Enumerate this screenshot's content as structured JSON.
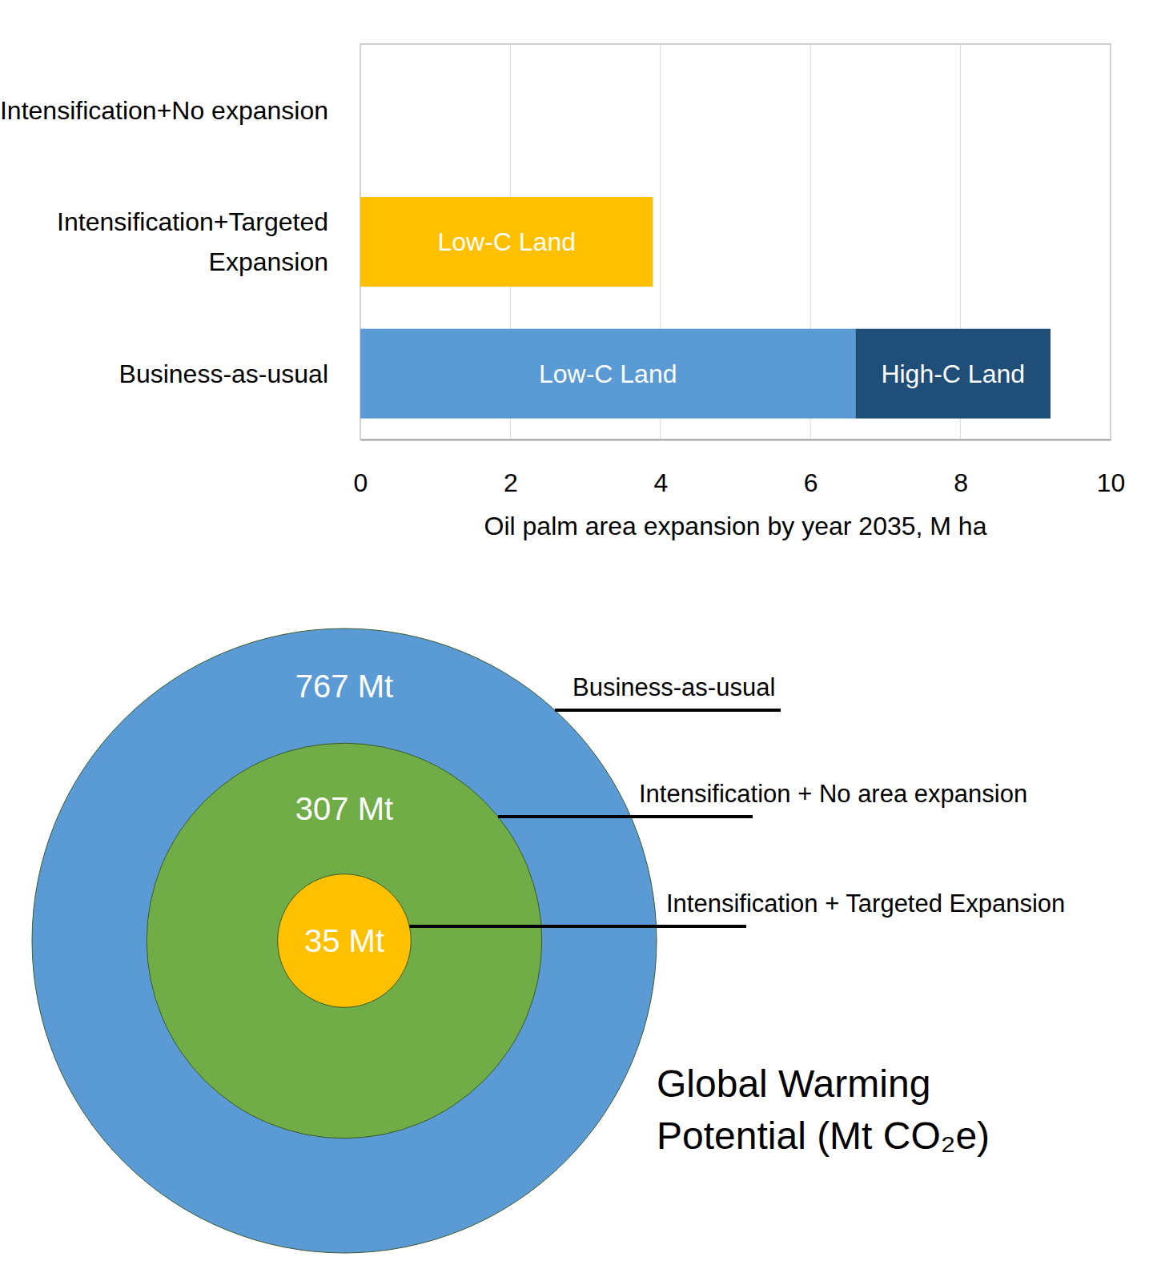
{
  "chart_data": [
    {
      "type": "bar",
      "orientation": "horizontal",
      "stacked": true,
      "grid": true,
      "x_label": "Oil palm area expansion by year 2035, M ha",
      "categories": [
        "Intensification+No expansion",
        "Intensification+Targeted Expansion",
        "Business-as-usual"
      ],
      "series": [
        {
          "name": "Low-C Land",
          "colors": [
            "#ffc000",
            "#ffc000",
            "#5b9bd5"
          ],
          "values": [
            0,
            3.9,
            6.6
          ]
        },
        {
          "name": "High-C Land",
          "color": "#1f4e79",
          "values": [
            0,
            0,
            2.6
          ]
        }
      ],
      "xlim": [
        0,
        10
      ],
      "xticks": [
        0,
        2,
        4,
        6,
        8,
        10
      ]
    },
    {
      "type": "nested_circles",
      "title": "Global Warming Potential (Mt CO₂e)",
      "categories": [
        "Business-as-usual",
        "Intensification + No area expansion",
        "Intensification + Targeted Expansion"
      ],
      "values": [
        767,
        307,
        35
      ],
      "value_labels": [
        "767 Mt",
        "307 Mt",
        "35 Mt"
      ],
      "data_labels": true,
      "colors": [
        "#5b9bd5",
        "#70ad47",
        "#ffc000"
      ]
    }
  ]
}
